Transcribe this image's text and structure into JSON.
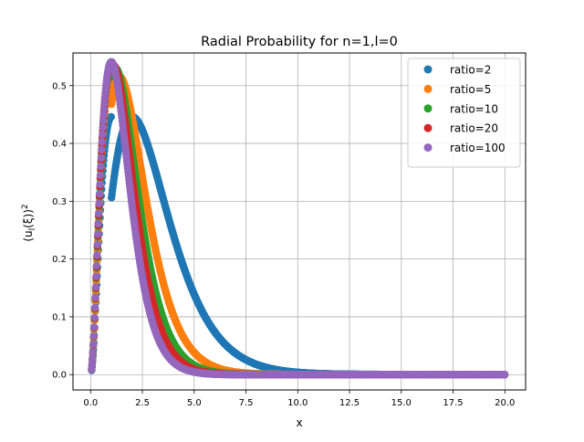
{
  "chart_data": {
    "type": "scatter",
    "title": "Radial Probability for n=1,l=0",
    "xlabel": "x",
    "ylabel_parts": {
      "pre": "(u",
      "sub": "l",
      "post": "(ξ))",
      "sup": "2"
    },
    "xlim": [
      -0.85,
      21.0
    ],
    "ylim": [
      -0.0265,
      0.5565
    ],
    "xticks": [
      0.0,
      2.5,
      5.0,
      7.5,
      10.0,
      12.5,
      15.0,
      17.5,
      20.0
    ],
    "xtick_labels": [
      "0.0",
      "2.5",
      "5.0",
      "7.5",
      "10.0",
      "12.5",
      "15.0",
      "17.5",
      "20.0"
    ],
    "yticks": [
      0.0,
      0.1,
      0.2,
      0.3,
      0.4,
      0.5
    ],
    "ytick_labels": [
      "0.0",
      "0.1",
      "0.2",
      "0.3",
      "0.4",
      "0.5"
    ],
    "grid": true,
    "legend_position": "top-right",
    "x_range": [
      0,
      20
    ],
    "series": [
      {
        "name": "ratio=2",
        "color": "#1f77b4",
        "peak_x": 1.0,
        "peak_y": 0.446,
        "tail_scale": 2.0
      },
      {
        "name": "ratio=5",
        "color": "#ff7f0e",
        "peak_x": 1.0,
        "peak_y": 0.515,
        "tail_scale": 1.4
      },
      {
        "name": "ratio=10",
        "color": "#2ca02c",
        "peak_x": 1.0,
        "peak_y": 0.53,
        "tail_scale": 1.2
      },
      {
        "name": "ratio=20",
        "color": "#d62728",
        "peak_x": 1.0,
        "peak_y": 0.535,
        "tail_scale": 1.1
      },
      {
        "name": "ratio=100",
        "color": "#9467bd",
        "peak_x": 1.0,
        "peak_y": 0.541,
        "tail_scale": 1.0
      }
    ],
    "sample_points": [
      {
        "x": 0.1,
        "y": 0.018
      },
      {
        "x": 0.3,
        "y": 0.14
      },
      {
        "x": 0.5,
        "y": 0.3
      },
      {
        "x": 0.75,
        "y": 0.47
      },
      {
        "x": 1.0,
        "y": 0.541
      },
      {
        "x": 1.5,
        "y": 0.45
      },
      {
        "x": 2.0,
        "y": 0.293
      },
      {
        "x": 2.5,
        "y": 0.168
      },
      {
        "x": 3.0,
        "y": 0.089
      },
      {
        "x": 4.0,
        "y": 0.021
      },
      {
        "x": 5.0,
        "y": 0.0045
      },
      {
        "x": 7.5,
        "y": 0.0
      },
      {
        "x": 20.0,
        "y": 0.0
      }
    ]
  }
}
